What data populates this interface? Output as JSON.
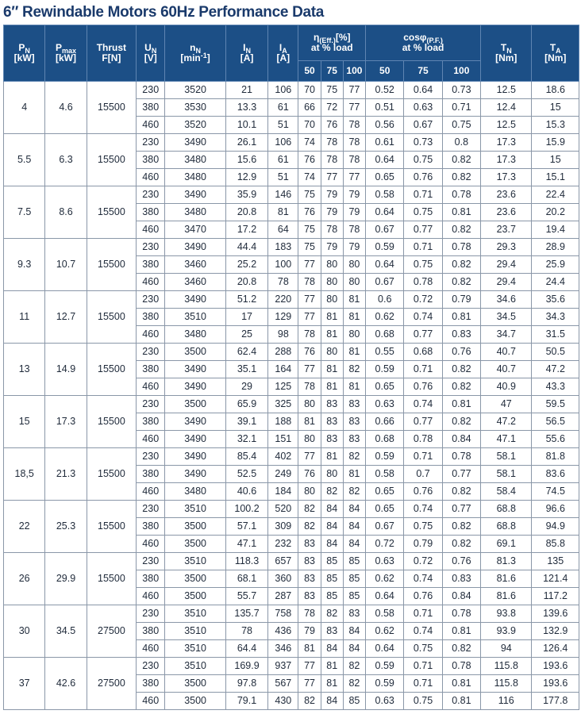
{
  "title": "6″ Rewindable Motors 60Hz Performance Data",
  "headers": {
    "pn_main": "P",
    "pn_sub": "N",
    "pn_unit": "[kW]",
    "pmax_main": "P",
    "pmax_sub": "max",
    "pmax_unit": "[kW]",
    "thrust_main": "Thrust",
    "thrust_unit": "F[N]",
    "un_main": "U",
    "un_sub": "N",
    "un_unit": "[V]",
    "nn_main": "n",
    "nn_sub": "N",
    "nn_unit_a": "[min",
    "nn_unit_sup": "-1",
    "nn_unit_b": "]",
    "in_main": "I",
    "in_sub": "N",
    "in_unit": "[A]",
    "ia_main": "I",
    "ia_sub": "A",
    "ia_unit": "[A]",
    "eff_main": "η",
    "eff_sub": "(Eff.)",
    "eff_unit": "[%]",
    "eff_line2": "at % load",
    "cos_main": "cosφ",
    "cos_sub": "(P.F.)",
    "cos_line2": "at % load",
    "tn_main": "T",
    "tn_sub": "N",
    "tn_unit": "[Nm]",
    "ta_main": "T",
    "ta_sub": "A",
    "ta_unit": "[Nm]",
    "load": [
      "50",
      "75",
      "100",
      "50",
      "75",
      "100"
    ]
  },
  "groups": [
    {
      "pn": "4",
      "pmax": "4.6",
      "thrust": "15500",
      "rows": [
        [
          "230",
          "3520",
          "21",
          "106",
          "70",
          "75",
          "77",
          "0.52",
          "0.64",
          "0.73",
          "12.5",
          "18.6"
        ],
        [
          "380",
          "3530",
          "13.3",
          "61",
          "66",
          "72",
          "77",
          "0.51",
          "0.63",
          "0.71",
          "12.4",
          "15"
        ],
        [
          "460",
          "3520",
          "10.1",
          "51",
          "70",
          "76",
          "78",
          "0.56",
          "0.67",
          "0.75",
          "12.5",
          "15.3"
        ]
      ]
    },
    {
      "pn": "5.5",
      "pmax": "6.3",
      "thrust": "15500",
      "rows": [
        [
          "230",
          "3490",
          "26.1",
          "106",
          "74",
          "78",
          "78",
          "0.61",
          "0.73",
          "0.8",
          "17.3",
          "15.9"
        ],
        [
          "380",
          "3480",
          "15.6",
          "61",
          "76",
          "78",
          "78",
          "0.64",
          "0.75",
          "0.82",
          "17.3",
          "15"
        ],
        [
          "460",
          "3480",
          "12.9",
          "51",
          "74",
          "77",
          "77",
          "0.65",
          "0.76",
          "0.82",
          "17.3",
          "15.1"
        ]
      ]
    },
    {
      "pn": "7.5",
      "pmax": "8.6",
      "thrust": "15500",
      "rows": [
        [
          "230",
          "3490",
          "35.9",
          "146",
          "75",
          "79",
          "79",
          "0.58",
          "0.71",
          "0.78",
          "23.6",
          "22.4"
        ],
        [
          "380",
          "3480",
          "20.8",
          "81",
          "76",
          "79",
          "79",
          "0.64",
          "0.75",
          "0.81",
          "23.6",
          "20.2"
        ],
        [
          "460",
          "3470",
          "17.2",
          "64",
          "75",
          "78",
          "78",
          "0.67",
          "0.77",
          "0.82",
          "23.7",
          "19.4"
        ]
      ]
    },
    {
      "pn": "9.3",
      "pmax": "10.7",
      "thrust": "15500",
      "rows": [
        [
          "230",
          "3490",
          "44.4",
          "183",
          "75",
          "79",
          "79",
          "0.59",
          "0.71",
          "0.78",
          "29.3",
          "28.9"
        ],
        [
          "380",
          "3460",
          "25.2",
          "100",
          "77",
          "80",
          "80",
          "0.64",
          "0.75",
          "0.82",
          "29.4",
          "25.9"
        ],
        [
          "460",
          "3460",
          "20.8",
          "78",
          "78",
          "80",
          "80",
          "0.67",
          "0.78",
          "0.82",
          "29.4",
          "24.4"
        ]
      ]
    },
    {
      "pn": "11",
      "pmax": "12.7",
      "thrust": "15500",
      "rows": [
        [
          "230",
          "3490",
          "51.2",
          "220",
          "77",
          "80",
          "81",
          "0.6",
          "0.72",
          "0.79",
          "34.6",
          "35.6"
        ],
        [
          "380",
          "3510",
          "17",
          "129",
          "77",
          "81",
          "81",
          "0.62",
          "0.74",
          "0.81",
          "34.5",
          "34.3"
        ],
        [
          "460",
          "3480",
          "25",
          "98",
          "78",
          "81",
          "80",
          "0.68",
          "0.77",
          "0.83",
          "34.7",
          "31.5"
        ]
      ]
    },
    {
      "pn": "13",
      "pmax": "14.9",
      "thrust": "15500",
      "rows": [
        [
          "230",
          "3500",
          "62.4",
          "288",
          "76",
          "80",
          "81",
          "0.55",
          "0.68",
          "0.76",
          "40.7",
          "50.5"
        ],
        [
          "380",
          "3490",
          "35.1",
          "164",
          "77",
          "81",
          "82",
          "0.59",
          "0.71",
          "0.82",
          "40.7",
          "47.2"
        ],
        [
          "460",
          "3490",
          "29",
          "125",
          "78",
          "81",
          "81",
          "0.65",
          "0.76",
          "0.82",
          "40.9",
          "43.3"
        ]
      ]
    },
    {
      "pn": "15",
      "pmax": "17.3",
      "thrust": "15500",
      "rows": [
        [
          "230",
          "3500",
          "65.9",
          "325",
          "80",
          "83",
          "83",
          "0.63",
          "0.74",
          "0.81",
          "47",
          "59.5"
        ],
        [
          "380",
          "3490",
          "39.1",
          "188",
          "81",
          "83",
          "83",
          "0.66",
          "0.77",
          "0.82",
          "47.2",
          "56.5"
        ],
        [
          "460",
          "3490",
          "32.1",
          "151",
          "80",
          "83",
          "83",
          "0.68",
          "0.78",
          "0.84",
          "47.1",
          "55.6"
        ]
      ]
    },
    {
      "pn": "18,5",
      "pmax": "21.3",
      "thrust": "15500",
      "rows": [
        [
          "230",
          "3490",
          "85.4",
          "402",
          "77",
          "81",
          "82",
          "0.59",
          "0.71",
          "0.78",
          "58.1",
          "81.8"
        ],
        [
          "380",
          "3490",
          "52.5",
          "249",
          "76",
          "80",
          "81",
          "0.58",
          "0.7",
          "0.77",
          "58.1",
          "83.6"
        ],
        [
          "460",
          "3480",
          "40.6",
          "184",
          "80",
          "82",
          "82",
          "0.65",
          "0.76",
          "0.82",
          "58.4",
          "74.5"
        ]
      ]
    },
    {
      "pn": "22",
      "pmax": "25.3",
      "thrust": "15500",
      "rows": [
        [
          "230",
          "3510",
          "100.2",
          "520",
          "82",
          "84",
          "84",
          "0.65",
          "0.74",
          "0.77",
          "68.8",
          "96.6"
        ],
        [
          "380",
          "3500",
          "57.1",
          "309",
          "82",
          "84",
          "84",
          "0.67",
          "0.75",
          "0.82",
          "68.8",
          "94.9"
        ],
        [
          "460",
          "3500",
          "47.1",
          "232",
          "83",
          "84",
          "84",
          "0.72",
          "0.79",
          "0.82",
          "69.1",
          "85.8"
        ]
      ]
    },
    {
      "pn": "26",
      "pmax": "29.9",
      "thrust": "15500",
      "rows": [
        [
          "230",
          "3510",
          "118.3",
          "657",
          "83",
          "85",
          "85",
          "0.63",
          "0.72",
          "0.76",
          "81.3",
          "135"
        ],
        [
          "380",
          "3500",
          "68.1",
          "360",
          "83",
          "85",
          "85",
          "0.62",
          "0.74",
          "0.83",
          "81.6",
          "121.4"
        ],
        [
          "460",
          "3500",
          "55.7",
          "287",
          "83",
          "85",
          "85",
          "0.64",
          "0.76",
          "0.84",
          "81.6",
          "117.2"
        ]
      ]
    },
    {
      "pn": "30",
      "pmax": "34.5",
      "thrust": "27500",
      "rows": [
        [
          "230",
          "3510",
          "135.7",
          "758",
          "78",
          "82",
          "83",
          "0.58",
          "0.71",
          "0.78",
          "93.8",
          "139.6"
        ],
        [
          "380",
          "3510",
          "78",
          "436",
          "79",
          "83",
          "84",
          "0.62",
          "0.74",
          "0.81",
          "93.9",
          "132.9"
        ],
        [
          "460",
          "3510",
          "64.4",
          "346",
          "81",
          "84",
          "84",
          "0.64",
          "0.75",
          "0.82",
          "94",
          "126.4"
        ]
      ]
    },
    {
      "pn": "37",
      "pmax": "42.6",
      "thrust": "27500",
      "rows": [
        [
          "230",
          "3510",
          "169.9",
          "937",
          "77",
          "81",
          "82",
          "0.59",
          "0.71",
          "0.78",
          "115.8",
          "193.6"
        ],
        [
          "380",
          "3500",
          "97.8",
          "567",
          "77",
          "81",
          "82",
          "0.59",
          "0.71",
          "0.81",
          "115.8",
          "193.6"
        ],
        [
          "460",
          "3500",
          "79.1",
          "430",
          "82",
          "84",
          "85",
          "0.63",
          "0.75",
          "0.81",
          "116",
          "177.8"
        ]
      ]
    }
  ]
}
